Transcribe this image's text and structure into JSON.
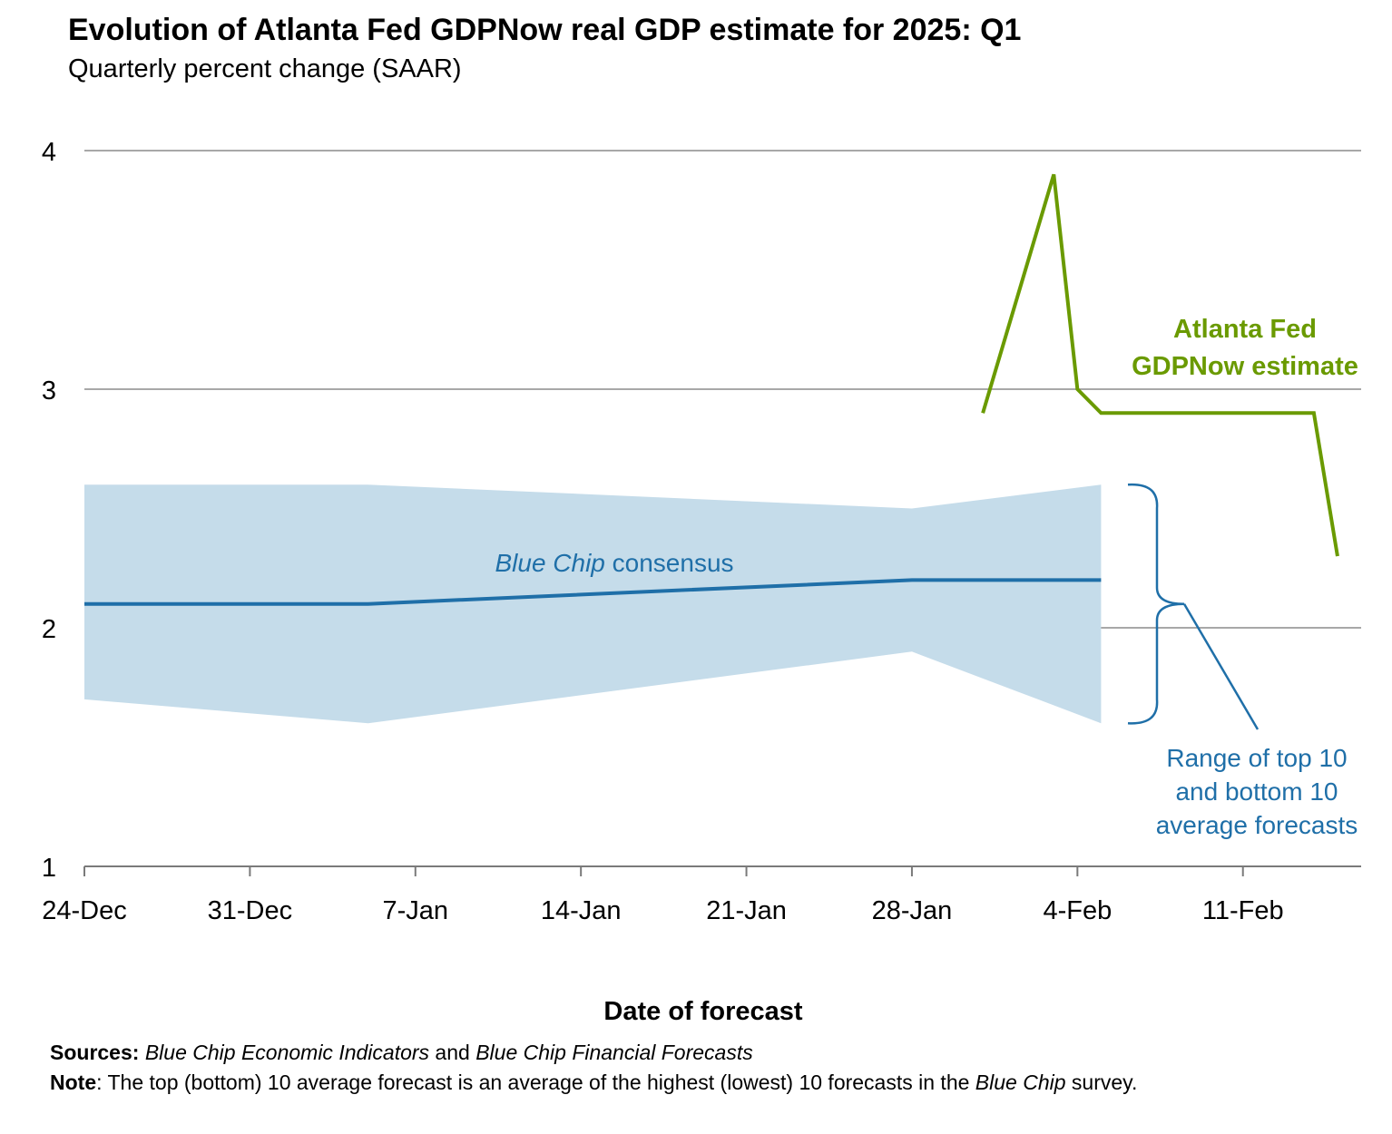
{
  "header": {
    "title": "Evolution of Atlanta Fed GDPNow real GDP estimate for 2025: Q1",
    "subtitle": "Quarterly percent change (SAAR)"
  },
  "chart_data": {
    "type": "line",
    "xlabel": "Date of forecast",
    "ylabel": "",
    "x_ticks": [
      "24-Dec",
      "31-Dec",
      "7-Jan",
      "14-Jan",
      "21-Jan",
      "28-Jan",
      "4-Feb",
      "11-Feb"
    ],
    "x_tick_dates": [
      "2024-12-24",
      "2024-12-31",
      "2025-01-07",
      "2025-01-14",
      "2025-01-21",
      "2025-01-28",
      "2025-02-04",
      "2025-02-11"
    ],
    "xlim": [
      "2024-12-24",
      "2025-02-16"
    ],
    "ylim": [
      1,
      4
    ],
    "y_ticks": [
      1,
      2,
      3,
      4
    ],
    "grid": true,
    "series": [
      {
        "name": "Atlanta Fed GDPNow estimate",
        "color": "#6a9a00",
        "points": [
          {
            "x": "2025-01-31",
            "y": 2.9
          },
          {
            "x": "2025-02-03",
            "y": 3.9
          },
          {
            "x": "2025-02-04",
            "y": 3.0
          },
          {
            "x": "2025-02-05",
            "y": 2.9
          },
          {
            "x": "2025-02-14",
            "y": 2.9
          },
          {
            "x": "2025-02-15",
            "y": 2.3
          }
        ]
      },
      {
        "name": "Blue Chip consensus",
        "color": "#1f6fa8",
        "points": [
          {
            "x": "2024-12-24",
            "y": 2.1
          },
          {
            "x": "2025-01-05",
            "y": 2.1
          },
          {
            "x": "2025-01-28",
            "y": 2.2
          },
          {
            "x": "2025-02-05",
            "y": 2.2
          }
        ]
      }
    ],
    "band": {
      "name": "Range of top 10 and bottom 10 average forecasts",
      "color": "#c5dcea",
      "points": [
        {
          "x": "2024-12-24",
          "low": 1.7,
          "high": 2.6
        },
        {
          "x": "2025-01-05",
          "low": 1.6,
          "high": 2.6
        },
        {
          "x": "2025-01-28",
          "low": 1.9,
          "high": 2.5
        },
        {
          "x": "2025-02-05",
          "low": 1.6,
          "high": 2.6
        }
      ]
    },
    "annotations": {
      "gdpnow": [
        "Atlanta Fed",
        "GDPNow estimate"
      ],
      "consensus_italic": "Blue Chip",
      "consensus_rest": " consensus",
      "range": [
        "Range of top 10",
        "and bottom 10",
        "average forecasts"
      ]
    }
  },
  "footer": {
    "sources_label": "Sources:",
    "sources_italic_1": "Blue Chip Economic Indicators",
    "sources_and": " and ",
    "sources_italic_2": "Blue Chip Financial Forecasts",
    "note_label": "Note",
    "note_text": ": The top (bottom) 10 average forecast is an average of the highest (lowest) 10 forecasts in the ",
    "note_italic": "Blue Chip",
    "note_end": " survey."
  }
}
